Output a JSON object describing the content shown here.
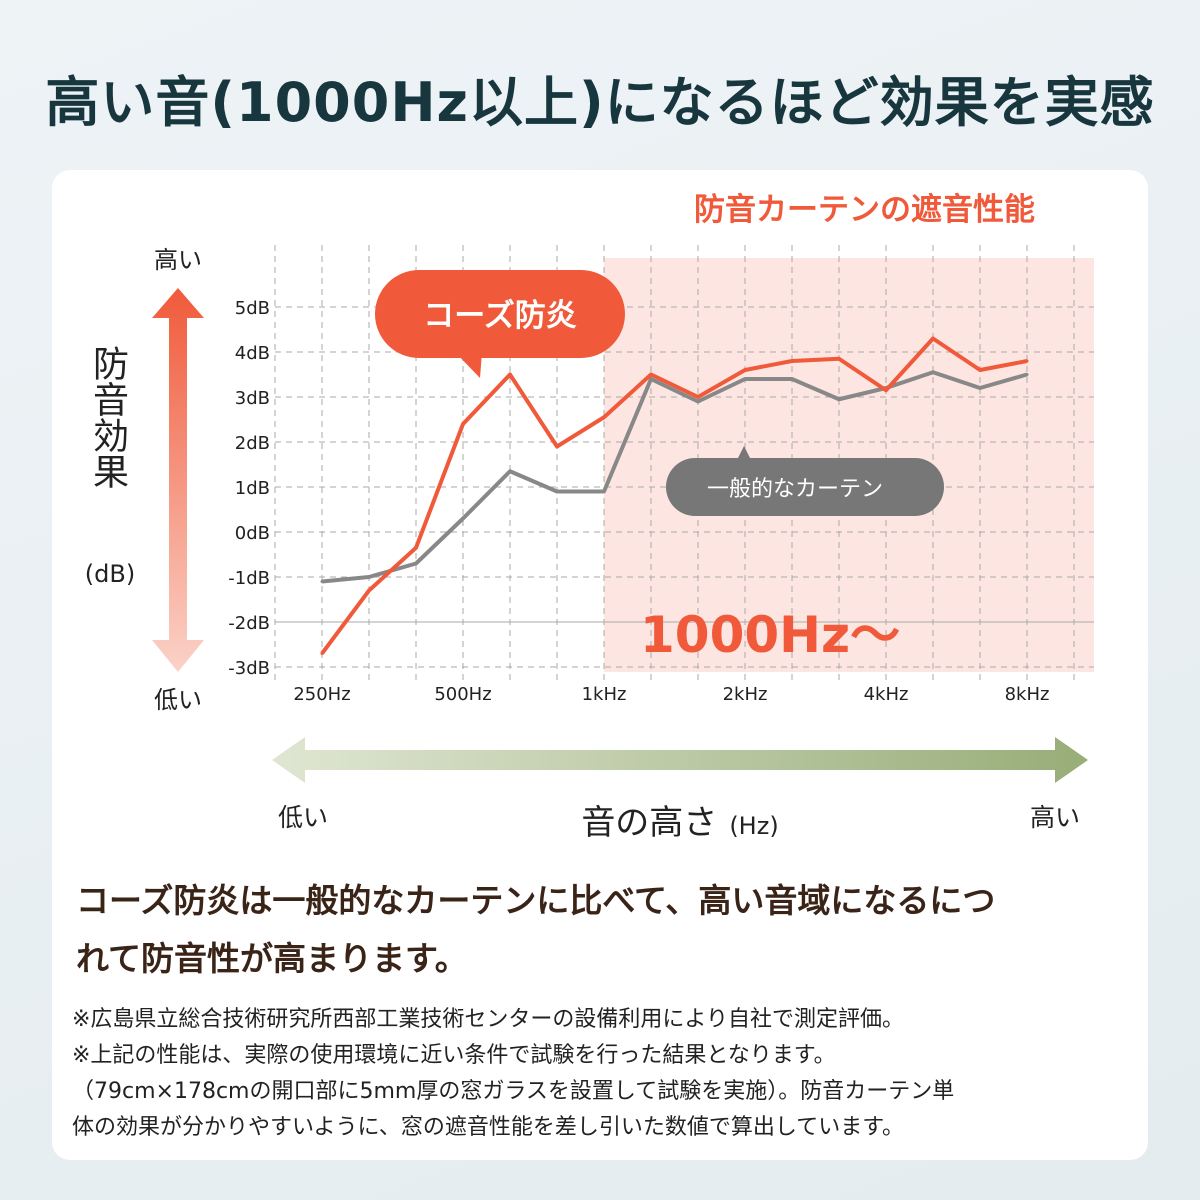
{
  "title": "高い音(1000Hz以上)になるほど効果を実感",
  "colors": {
    "accent": "#f05a3a",
    "gray": "#888888",
    "band": "#fde6e1",
    "arrow_green": "#a9b98c",
    "title": "#17363d"
  },
  "chart_data": {
    "type": "line",
    "title": "防音カーテンの遮音性能",
    "ylabel": "防音効果",
    "yunit": "(dB)",
    "y_high": "高い",
    "y_low": "低い",
    "xlabel": "音の高さ",
    "xunit": "(Hz)",
    "x_low": "低い",
    "x_high": "高い",
    "ylim": [
      -3,
      5
    ],
    "yticks": [
      "5dB",
      "4dB",
      "3dB",
      "2dB",
      "1dB",
      "0dB",
      "-1dB",
      "-2dB",
      "-3dB"
    ],
    "x": [
      250,
      315,
      400,
      500,
      630,
      800,
      1000,
      1250,
      1600,
      2000,
      2500,
      3150,
      4000,
      5000,
      6300,
      8000
    ],
    "xtick_labels": [
      {
        "i": 0,
        "label": "250Hz"
      },
      {
        "i": 3,
        "label": "500Hz"
      },
      {
        "i": 6,
        "label": "1kHz"
      },
      {
        "i": 9,
        "label": "2kHz"
      },
      {
        "i": 12,
        "label": "4kHz"
      },
      {
        "i": 15,
        "label": "8kHz"
      }
    ],
    "highlight": {
      "from": 1000,
      "label": "1000Hz〜"
    },
    "series": [
      {
        "name": "コーズ防炎",
        "color": "#f05a3a",
        "values": [
          -2.7,
          -1.3,
          -0.35,
          2.4,
          3.5,
          1.9,
          2.55,
          3.5,
          3.0,
          3.6,
          3.8,
          3.85,
          3.15,
          4.3,
          3.6,
          3.8
        ]
      },
      {
        "name": "一般的なカーテン",
        "color": "#888888",
        "values": [
          -1.1,
          -1.0,
          -0.7,
          0.3,
          1.35,
          0.9,
          0.9,
          3.4,
          2.9,
          3.4,
          3.4,
          2.95,
          3.2,
          3.55,
          3.2,
          3.5
        ]
      }
    ]
  },
  "summary": [
    "コーズ防炎は一般的なカーテンに比べて、高い音域になるにつ",
    "れて防音性が高まります。"
  ],
  "notes": [
    "※広島県立総合技術研究所西部工業技術センターの設備利用により自社で測定評価。",
    "※上記の性能は、実際の使用環境に近い条件で試験を行った結果となります。",
    "（79cm×178cmの開口部に5mm厚の窓ガラスを設置して試験を実施）。防音カーテン単",
    "体の効果が分かりやすいように、窓の遮音性能を差し引いた数値で算出しています。"
  ]
}
